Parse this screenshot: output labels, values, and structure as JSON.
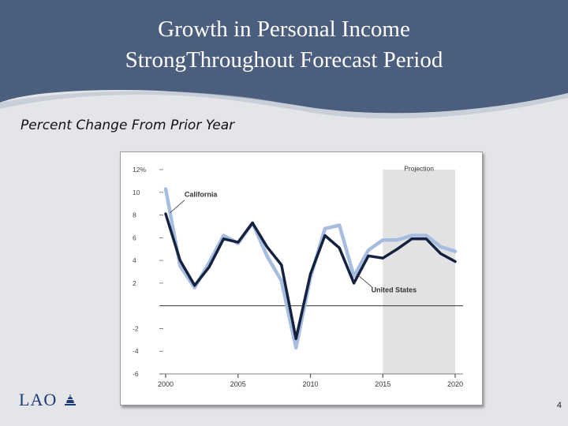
{
  "slide": {
    "title_line1": "Growth in Personal Income",
    "title_line2": "Strong​Throughout Forecast Period",
    "subtitle": "Percent Change From Prior Year",
    "logo_text": "LAO",
    "page_number": "4"
  },
  "colors": {
    "header_bg": "#4b5e7d",
    "background": "#e4e5e9",
    "california_line": "#a7bde0",
    "us_line": "#14223f",
    "projection_band": "#e2e2e2"
  },
  "chart_data": {
    "type": "line",
    "y_ticks": [
      "12%",
      "10",
      "8",
      "6",
      "4",
      "2",
      "-2",
      "-4",
      "-6"
    ],
    "y_tick_values": [
      12,
      10,
      8,
      6,
      4,
      2,
      -2,
      -4,
      -6
    ],
    "x_ticks": [
      "2000",
      "2005",
      "2010",
      "2015",
      "2020"
    ],
    "x_tick_values": [
      2000,
      2005,
      2010,
      2015,
      2020
    ],
    "xlim": [
      2000,
      2020
    ],
    "ylim": [
      -6,
      12
    ],
    "projection": {
      "label": "Projection",
      "start": 2015,
      "end": 2020
    },
    "series": [
      {
        "name": "California",
        "x": [
          2000,
          2001,
          2002,
          2003,
          2004,
          2005,
          2006,
          2007,
          2008,
          2009,
          2010,
          2011,
          2012,
          2013,
          2014,
          2015,
          2016,
          2017,
          2018,
          2019,
          2020
        ],
        "values": [
          10.3,
          3.5,
          1.6,
          3.8,
          6.2,
          5.5,
          7.3,
          4.4,
          2.2,
          -3.7,
          2.5,
          6.8,
          7.1,
          2.6,
          4.9,
          5.8,
          5.8,
          6.2,
          6.2,
          5.2,
          4.8
        ]
      },
      {
        "name": "United States",
        "x": [
          2000,
          2001,
          2002,
          2003,
          2004,
          2005,
          2006,
          2007,
          2008,
          2009,
          2010,
          2011,
          2012,
          2013,
          2014,
          2015,
          2016,
          2017,
          2018,
          2019,
          2020
        ],
        "values": [
          8.1,
          4.0,
          1.8,
          3.4,
          5.9,
          5.6,
          7.3,
          5.2,
          3.6,
          -2.9,
          2.8,
          6.2,
          5.1,
          2.0,
          4.4,
          4.2,
          5.0,
          5.9,
          5.9,
          4.6,
          3.9
        ]
      }
    ]
  }
}
